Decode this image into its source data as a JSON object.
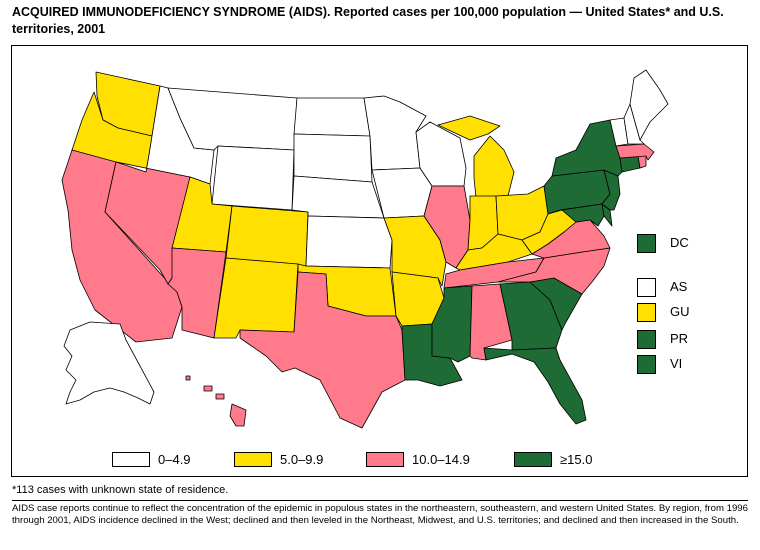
{
  "title": "ACQUIRED IMMUNODEFICIENCY SYNDROME (AIDS). Reported cases per 100,000 population — United States* and U.S. territories,  2001",
  "colors": {
    "c0": "#ffffff",
    "c1": "#ffe000",
    "c2": "#ff7a8a",
    "c3": "#1f6b35"
  },
  "territories": [
    {
      "label": "DC",
      "category": "c3"
    },
    {
      "label": "AS",
      "category": "c0"
    },
    {
      "label": "GU",
      "category": "c1"
    },
    {
      "label": "PR",
      "category": "c3"
    },
    {
      "label": "VI",
      "category": "c3"
    }
  ],
  "legend": [
    {
      "label": "0–4.9",
      "category": "c0"
    },
    {
      "label": "5.0–9.9",
      "category": "c1"
    },
    {
      "label": "10.0–14.9",
      "category": "c2"
    },
    {
      "label": "≥15.0",
      "category": "c3"
    }
  ],
  "footnote": "*113 cases with unknown state of residence.",
  "note": "AIDS case reports continue to reflect the concentration of the epidemic in populous states in the northeastern, southeastern, and western United States. By region, from 1996 through 2001, AIDS incidence declined in the West; declined and then leveled in the Northeast, Midwest, and U.S. territories; and declined and then increased in the South.",
  "states": {
    "WA": "c1",
    "OR": "c1",
    "CA": "c2",
    "NV": "c2",
    "ID": "c0",
    "MT": "c0",
    "WY": "c0",
    "UT": "c1",
    "AZ": "c2",
    "CO": "c1",
    "NM": "c1",
    "ND": "c0",
    "SD": "c0",
    "NE": "c0",
    "KS": "c0",
    "OK": "c1",
    "TX": "c2",
    "MN": "c0",
    "IA": "c0",
    "MO": "c1",
    "AR": "c1",
    "LA": "c3",
    "WI": "c0",
    "IL": "c2",
    "MI": "c1",
    "IN": "c1",
    "OH": "c1",
    "KY": "c1",
    "TN": "c2",
    "MS": "c3",
    "AL": "c2",
    "GA": "c3",
    "FL": "c3",
    "SC": "c3",
    "NC": "c2",
    "VA": "c2",
    "WV": "c1",
    "PA": "c3",
    "NY": "c3",
    "MD": "c3",
    "DE": "c3",
    "NJ": "c3",
    "CT": "c3",
    "RI": "c2",
    "MA": "c2",
    "VT": "c0",
    "NH": "c0",
    "ME": "c0",
    "AK": "c0",
    "HI": "c2"
  }
}
